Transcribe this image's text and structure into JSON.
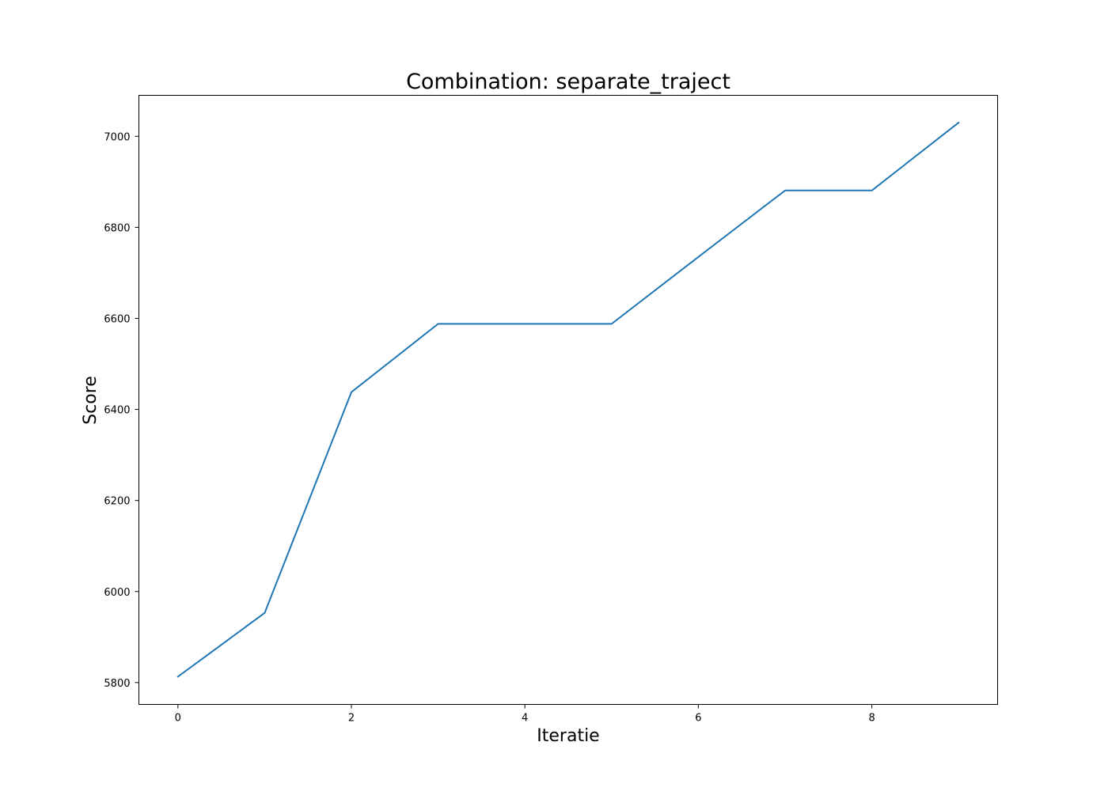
{
  "chart_data": {
    "type": "line",
    "title": "Combination: separate_traject",
    "xlabel": "Iteratie",
    "ylabel": "Score",
    "x": [
      0,
      1,
      2,
      3,
      4,
      5,
      6,
      7,
      8,
      9
    ],
    "series": [
      {
        "values": [
          5813,
          5953,
          6438,
          6588,
          6588,
          6588,
          6735,
          6881,
          6881,
          7030
        ]
      }
    ],
    "xlim": [
      -0.45,
      9.45
    ],
    "ylim": [
      5752,
      7090
    ],
    "xticks": [
      0,
      2,
      4,
      6,
      8
    ],
    "yticks": [
      5800,
      6000,
      6200,
      6400,
      6600,
      6800,
      7000
    ],
    "grid": false,
    "legend": "none",
    "line_color": "#1f77b4"
  }
}
